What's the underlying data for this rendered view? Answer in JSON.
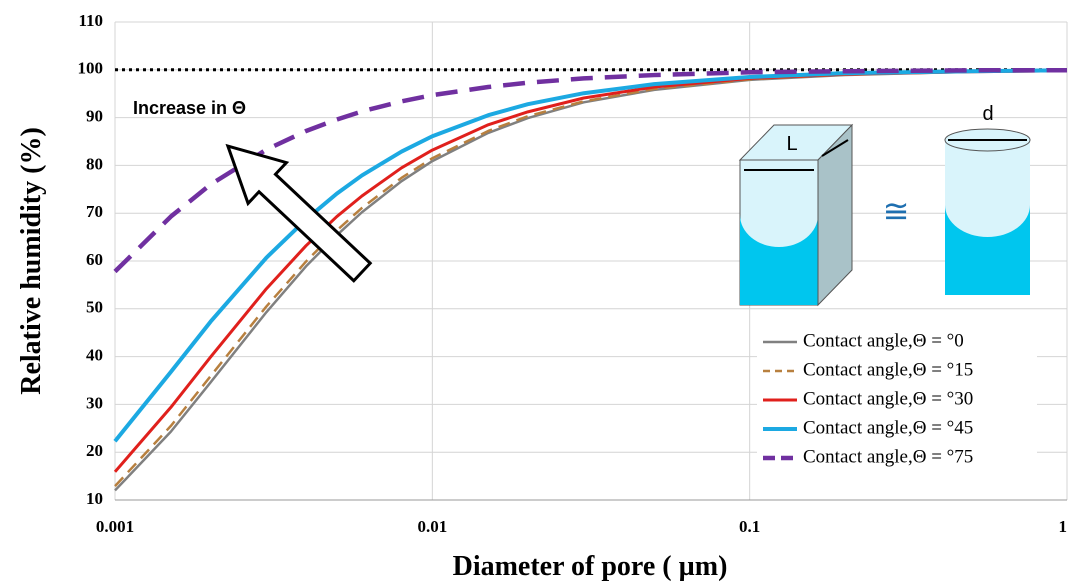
{
  "chart_data": {
    "type": "line",
    "x_scale": "log",
    "y_label": "Relative humidity (%)",
    "x_label": "Diameter of pore ( µm)",
    "annotation": "Increase in Θ",
    "inset_labels": [
      "L",
      "d",
      "≅"
    ],
    "x": [
      0.001,
      0.0015,
      0.002,
      0.003,
      0.004,
      0.005,
      0.006,
      0.008,
      0.01,
      0.015,
      0.02,
      0.03,
      0.05,
      0.1,
      0.2,
      0.5,
      1
    ],
    "series": [
      {
        "name": "Contact angle,Θ = °0",
        "color": "#808080",
        "dashed": false,
        "values": [
          12.0,
          24.3,
          34.6,
          49.3,
          58.9,
          65.4,
          70.2,
          76.7,
          80.9,
          86.8,
          89.9,
          93.2,
          95.8,
          97.9,
          98.9,
          99.6,
          99.8
        ]
      },
      {
        "name": "Contact angle,Θ = °15",
        "color": "#b8803f",
        "dashed": true,
        "values": [
          12.9,
          25.5,
          35.9,
          50.5,
          59.9,
          66.4,
          71.1,
          77.4,
          81.5,
          87.2,
          90.3,
          93.4,
          96.0,
          98.0,
          99.0,
          99.6,
          99.8
        ]
      },
      {
        "name": "Contact angle,Θ = °30",
        "color": "#e0201c",
        "dashed": false,
        "values": [
          15.9,
          29.4,
          39.9,
          54.2,
          63.2,
          69.3,
          73.6,
          79.5,
          83.2,
          88.5,
          91.2,
          94.1,
          96.4,
          98.2,
          99.1,
          99.6,
          99.8
        ]
      },
      {
        "name": "Contact angle,Θ = °45",
        "color": "#1ca9e2",
        "dashed": false,
        "values": [
          22.3,
          36.8,
          47.3,
          60.7,
          68.7,
          74.1,
          77.9,
          82.9,
          86.1,
          90.5,
          92.8,
          95.1,
          97.0,
          98.5,
          99.3,
          99.7,
          99.9
        ]
      },
      {
        "name": "Contact angle,Θ = °75",
        "color": "#7030a0",
        "dashed": true,
        "values": [
          57.8,
          69.3,
          76.0,
          83.3,
          87.2,
          89.6,
          91.3,
          93.4,
          94.7,
          96.4,
          97.3,
          98.2,
          98.9,
          99.5,
          99.7,
          99.9,
          99.9
        ]
      }
    ],
    "reference_line": 100,
    "xlim": [
      0.001,
      1
    ],
    "xticks": [
      0.001,
      0.01,
      0.1,
      1
    ],
    "ylim": [
      10,
      110
    ],
    "yticks": [
      10,
      20,
      30,
      40,
      50,
      60,
      70,
      80,
      90,
      100,
      110
    ],
    "grid": true,
    "legend": "lower right"
  }
}
